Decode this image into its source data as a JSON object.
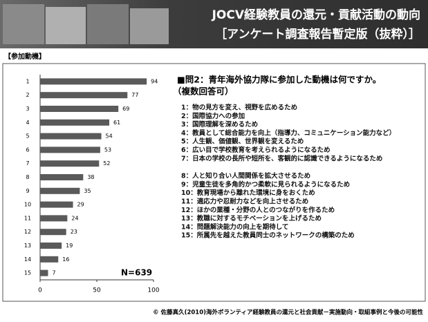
{
  "header": {
    "title_line1": "JOCV経験教員の還元・貢献活動の動向",
    "title_line2": "［アンケート調査報告暫定版（抜粋）］"
  },
  "section_label": "【参加動機】",
  "chart_data": {
    "type": "bar",
    "orientation": "horizontal",
    "categories": [
      "1",
      "2",
      "3",
      "4",
      "5",
      "6",
      "7",
      "8",
      "9",
      "10",
      "11",
      "12",
      "13",
      "14",
      "15"
    ],
    "values": [
      94,
      77,
      69,
      61,
      54,
      53,
      52,
      38,
      35,
      29,
      24,
      23,
      19,
      16,
      7
    ],
    "color": "#5a5a5a",
    "xlim": [
      0,
      100
    ],
    "xticks": [
      0,
      50,
      100
    ],
    "annotation": "N=639"
  },
  "question": {
    "title": "■問2：青年海外協力隊に参加した動機は何ですか。",
    "note": "（複数回答可）",
    "options": [
      "1：物の見方を変え、視野を広めるため",
      "2：国際協力への参加",
      "3：国際理解を深めるため",
      "4：教員として総合能力を向上（指導力、コミュニケーション能力など）",
      "5：人生観、価値観、世界観を変えるため",
      "6：広い目で学校教育を考えられるようになるため",
      "7：日本の学校の長所や短所を、客観的に認識できるようになるため",
      "8：人と知り合い人間関係を拡大させるため",
      "9：児童生徒を多角的かつ柔軟に見られるようになるため",
      "10：教育現場から離れた環境に身をおくため",
      "11：適応力や忍耐力などを向上させるため",
      "12：ほかの業種・分野の人とのつながりを作るため",
      "13：教職に対するモチベーションを上げるため",
      "14：問題解決能力の向上を期待して",
      "15：所属先を越えた教員同士のネットワークの構築のため"
    ]
  },
  "footer": "© 佐藤真久(2010)海外ボランティア経験教員の還元と社会貢献－実施動向・取組事例と今後の可能性"
}
